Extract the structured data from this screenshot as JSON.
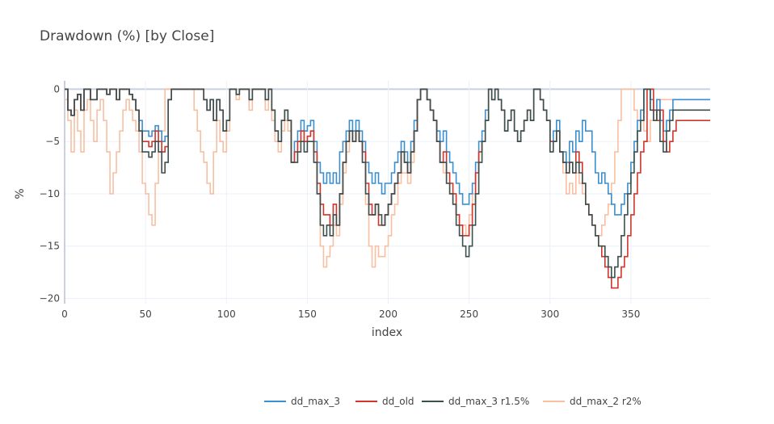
{
  "chart_data": {
    "type": "line",
    "line_shape": "step",
    "title": "Drawdown (%) [by Close]",
    "xlabel": "index",
    "ylabel": "%",
    "xlim": [
      0,
      399
    ],
    "ylim": [
      -20.5,
      0.8
    ],
    "x_ticks": [
      0,
      50,
      100,
      150,
      200,
      250,
      300,
      350
    ],
    "x_tick_labels": [
      "0",
      "50",
      "100",
      "150",
      "200",
      "250",
      "300",
      "350"
    ],
    "y_ticks": [
      0,
      -5,
      -10,
      -15,
      -20
    ],
    "y_tick_labels": [
      "0",
      "−5",
      "−10",
      "−15",
      "−20"
    ],
    "grid": true,
    "legend_position": "bottom",
    "x_step": 2,
    "series": [
      {
        "name": "dd_max_3",
        "color": "#3a8fd0",
        "values": [
          0,
          -2,
          -2.5,
          -1,
          -0.5,
          -2,
          0,
          0,
          -1,
          -1,
          0,
          0,
          0,
          -0.5,
          0,
          0,
          -1,
          0,
          0,
          0,
          -0.5,
          -1,
          -2,
          -3,
          -4,
          -4,
          -4.5,
          -4,
          -3.5,
          -4,
          -5,
          -4.5,
          -1,
          0,
          0,
          0,
          0,
          0,
          0,
          0,
          0,
          0,
          0,
          -1,
          -2,
          -1,
          -3,
          -1,
          -2,
          -4,
          -3,
          0,
          0,
          -0.5,
          0,
          0,
          0,
          -1,
          0,
          0,
          0,
          0,
          -1,
          0,
          -2,
          -4,
          -5,
          -3,
          -2,
          -3,
          -7,
          -5,
          -4,
          -3,
          -4,
          -3.5,
          -3,
          -5,
          -7,
          -8,
          -9,
          -8,
          -9,
          -8,
          -9,
          -6,
          -5,
          -4,
          -3,
          -4,
          -3,
          -4,
          -5,
          -7,
          -8,
          -9,
          -8,
          -9,
          -10,
          -9,
          -9,
          -8,
          -7,
          -6,
          -5,
          -6,
          -7,
          -5,
          -3,
          -1,
          0,
          0,
          -1,
          -2,
          -3,
          -4,
          -5,
          -4,
          -6,
          -7,
          -8,
          -9,
          -10,
          -11,
          -11,
          -10,
          -9,
          -7,
          -5,
          -4,
          -2,
          0,
          -1,
          0,
          -1,
          -2,
          -4,
          -3,
          -2,
          -4,
          -5,
          -4,
          -3,
          -2,
          -3,
          0,
          0,
          -1,
          -2,
          -3,
          -5,
          -4,
          -3,
          -6,
          -6,
          -7,
          -5,
          -6,
          -4,
          -5,
          -3,
          -4,
          -4,
          -6,
          -8,
          -9,
          -8,
          -9,
          -10,
          -11,
          -12,
          -12,
          -11,
          -10,
          -9,
          -7,
          -5,
          -3,
          -2,
          0,
          0,
          -1,
          -2,
          -1,
          -3,
          -4,
          -3,
          -2,
          -1
        ]
      },
      {
        "name": "dd_old",
        "color": "#d0352b",
        "values": [
          0,
          -2,
          -2.5,
          -1,
          -0.5,
          -2,
          0,
          0,
          -1,
          -1,
          0,
          0,
          0,
          -0.5,
          0,
          0,
          -1,
          0,
          0,
          0,
          -0.5,
          -1,
          -2,
          -4,
          -5,
          -5,
          -5.5,
          -5,
          -4,
          -5,
          -6,
          -5.5,
          -1,
          0,
          0,
          0,
          0,
          0,
          0,
          0,
          0,
          0,
          0,
          -1,
          -2,
          -1,
          -3,
          -1,
          -2,
          -4,
          -3,
          0,
          0,
          -0.5,
          0,
          0,
          0,
          -1,
          0,
          0,
          0,
          0,
          -1,
          0,
          -2,
          -4,
          -5,
          -3,
          -2,
          -3,
          -7,
          -6,
          -5,
          -4,
          -5,
          -4.5,
          -4,
          -6,
          -9,
          -11,
          -12,
          -12,
          -13,
          -11,
          -13,
          -10,
          -7,
          -5,
          -4,
          -5,
          -4,
          -5,
          -6,
          -9,
          -11,
          -12,
          -11,
          -13,
          -13,
          -12,
          -11,
          -10,
          -9,
          -8,
          -6,
          -7,
          -8,
          -6,
          -4,
          -1,
          0,
          0,
          -1,
          -2,
          -3,
          -5,
          -7,
          -6,
          -8,
          -9,
          -10,
          -12,
          -13,
          -14,
          -14,
          -13,
          -11,
          -8,
          -6,
          -5,
          -3,
          0,
          -1,
          0,
          -1,
          -2,
          -4,
          -3,
          -2,
          -4,
          -5,
          -4,
          -3,
          -2,
          -3,
          0,
          0,
          -1,
          -2,
          -3,
          -5,
          -5,
          -4,
          -6,
          -7,
          -8,
          -7,
          -8,
          -6,
          -7,
          -9,
          -11,
          -12,
          -13,
          -14,
          -15,
          -16,
          -17,
          -18,
          -19,
          -19,
          -18,
          -17,
          -16,
          -14,
          -12,
          -10,
          -8,
          -6,
          -5,
          0,
          0,
          -2,
          -3,
          -2,
          -5,
          -6,
          -5,
          -4,
          -3
        ]
      },
      {
        "name": "dd_max_3 r1.5%",
        "color": "#3c4f4d",
        "values": [
          0,
          -2,
          -2.5,
          -1,
          -0.5,
          -2,
          0,
          0,
          -1,
          -1,
          0,
          0,
          0,
          -0.5,
          0,
          0,
          -1,
          0,
          0,
          0,
          -0.5,
          -1,
          -2,
          -4,
          -6,
          -6,
          -6.5,
          -6,
          -5,
          -6,
          -8,
          -7,
          -1,
          0,
          0,
          0,
          0,
          0,
          0,
          0,
          0,
          0,
          0,
          -1,
          -2,
          -1,
          -3,
          -1,
          -2,
          -4,
          -3,
          0,
          0,
          -0.5,
          0,
          0,
          0,
          -1,
          0,
          0,
          0,
          0,
          -1,
          0,
          -2,
          -4,
          -5,
          -3,
          -2,
          -3,
          -7,
          -7,
          -6,
          -5,
          -6,
          -5,
          -5,
          -7,
          -10,
          -13,
          -14,
          -13,
          -14,
          -12,
          -13,
          -10,
          -7,
          -5,
          -4,
          -5,
          -4,
          -5,
          -7,
          -10,
          -12,
          -12,
          -11,
          -12,
          -13,
          -12,
          -11,
          -10,
          -9,
          -8,
          -6,
          -7,
          -8,
          -6,
          -4,
          -1,
          0,
          0,
          -1,
          -2,
          -3,
          -5,
          -7,
          -7,
          -9,
          -10,
          -11,
          -13,
          -14,
          -15,
          -16,
          -15,
          -13,
          -10,
          -7,
          -5,
          -3,
          0,
          -1,
          0,
          -1,
          -2,
          -4,
          -3,
          -2,
          -4,
          -5,
          -4,
          -3,
          -2,
          -3,
          0,
          0,
          -1,
          -2,
          -3,
          -6,
          -5,
          -4,
          -6,
          -7,
          -8,
          -7,
          -8,
          -7,
          -8,
          -9,
          -11,
          -12,
          -13,
          -14,
          -15,
          -15,
          -16,
          -17,
          -18,
          -17,
          -16,
          -14,
          -12,
          -10,
          -8,
          -6,
          -4,
          -3,
          0,
          0,
          -2,
          -3,
          -2,
          -5,
          -6,
          -4,
          -3,
          -2
        ]
      },
      {
        "name": "dd_max_2 r2%",
        "color": "#f9bfa1",
        "values": [
          -1,
          -3,
          -6,
          -2,
          -4,
          -6,
          -2,
          -1,
          -3,
          -5,
          -2,
          -1,
          -3,
          -6,
          -10,
          -8,
          -6,
          -4,
          -2,
          -1,
          -2,
          -3,
          -4,
          -6,
          -9,
          -10,
          -12,
          -13,
          -9,
          -6,
          -4,
          0,
          0,
          0,
          0,
          0,
          0,
          0,
          0,
          0,
          -2,
          -4,
          -6,
          -7,
          -9,
          -10,
          -6,
          -3,
          -5,
          -6,
          -4,
          0,
          0,
          -1,
          0,
          0,
          0,
          -2,
          0,
          0,
          0,
          0,
          -2,
          0,
          -3,
          -5,
          -6,
          -4,
          -3,
          -4,
          -7,
          -6,
          -5,
          -4,
          -5,
          -4.5,
          -4,
          -7,
          -10,
          -15,
          -17,
          -16,
          -15,
          -13,
          -14,
          -11,
          -8,
          -6,
          -4,
          -5,
          -4,
          -5,
          -7,
          -11,
          -15,
          -17,
          -15,
          -16,
          -16,
          -15,
          -14,
          -12,
          -11,
          -9,
          -8,
          -8,
          -9,
          -7,
          -4,
          -1,
          0,
          0,
          -1,
          -2,
          -3,
          -5,
          -7,
          -8,
          -9,
          -10,
          -11,
          -12,
          -13,
          -13,
          -14,
          -12,
          -10,
          -8,
          -6,
          -5,
          -3,
          0,
          -1,
          0,
          -1,
          -2,
          -4,
          -3,
          -2,
          -4,
          -5,
          -4,
          -3,
          -2,
          -3,
          0,
          0,
          -1,
          -2,
          -3,
          -5,
          -5,
          -4,
          -6,
          -8,
          -10,
          -9,
          -10,
          -8,
          -9,
          -10,
          -11,
          -12,
          -13,
          -14,
          -14,
          -13,
          -12,
          -11,
          -9,
          -6,
          -3,
          0,
          0,
          0,
          0,
          -2,
          -3,
          -2,
          -4,
          -5,
          -3,
          -2,
          -1
        ]
      }
    ]
  }
}
